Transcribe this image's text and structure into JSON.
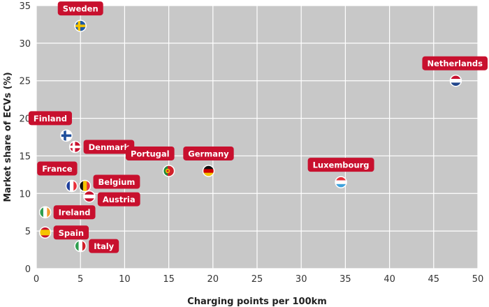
{
  "chart_data": {
    "type": "scatter",
    "title": "",
    "xlabel": "Charging points per 100km",
    "ylabel": "Market share of ECVs (%)",
    "xlim": [
      0,
      50
    ],
    "ylim": [
      0,
      35
    ],
    "xticks": [
      0,
      5,
      10,
      15,
      20,
      25,
      30,
      35,
      40,
      45,
      50
    ],
    "yticks": [
      0,
      5,
      10,
      15,
      20,
      25,
      30,
      35
    ],
    "grid": true,
    "colors": {
      "plot_background": "#c8c8c8",
      "grid": "#ffffff",
      "label_background": "#c8102e",
      "label_text": "#ffffff"
    },
    "points": [
      {
        "label": "Sweden",
        "x": 5.0,
        "y": 32.3,
        "flag": "sweden-flag-icon",
        "label_pos": "above"
      },
      {
        "label": "Netherlands",
        "x": 47.5,
        "y": 25.0,
        "flag": "netherlands-flag-icon",
        "label_pos": "above"
      },
      {
        "label": "Finland",
        "x": 3.4,
        "y": 17.7,
        "flag": "finland-flag-icon",
        "label_pos": "above-left"
      },
      {
        "label": "Denmark",
        "x": 4.4,
        "y": 16.2,
        "flag": "denmark-flag-icon",
        "label_pos": "right"
      },
      {
        "label": "Portugal",
        "x": 15.0,
        "y": 13.0,
        "flag": "portugal-flag-icon",
        "label_pos": "above-left"
      },
      {
        "label": "Germany",
        "x": 19.5,
        "y": 13.0,
        "flag": "germany-flag-icon",
        "label_pos": "above"
      },
      {
        "label": "Luxembourg",
        "x": 34.5,
        "y": 11.5,
        "flag": "luxembourg-flag-icon",
        "label_pos": "above"
      },
      {
        "label": "France",
        "x": 4.0,
        "y": 11.0,
        "flag": "france-flag-icon",
        "label_pos": "above-left"
      },
      {
        "label": "Belgium",
        "x": 5.5,
        "y": 11.0,
        "flag": "belgium-flag-icon",
        "label_pos": "right-up"
      },
      {
        "label": "Austria",
        "x": 6.0,
        "y": 9.6,
        "flag": "austria-flag-icon",
        "label_pos": "right-down"
      },
      {
        "label": "Ireland",
        "x": 1.0,
        "y": 7.5,
        "flag": "ireland-flag-icon",
        "label_pos": "right"
      },
      {
        "label": "Spain",
        "x": 1.0,
        "y": 4.8,
        "flag": "spain-flag-icon",
        "label_pos": "right"
      },
      {
        "label": "Italy",
        "x": 5.0,
        "y": 3.0,
        "flag": "italy-flag-icon",
        "label_pos": "right"
      }
    ]
  }
}
